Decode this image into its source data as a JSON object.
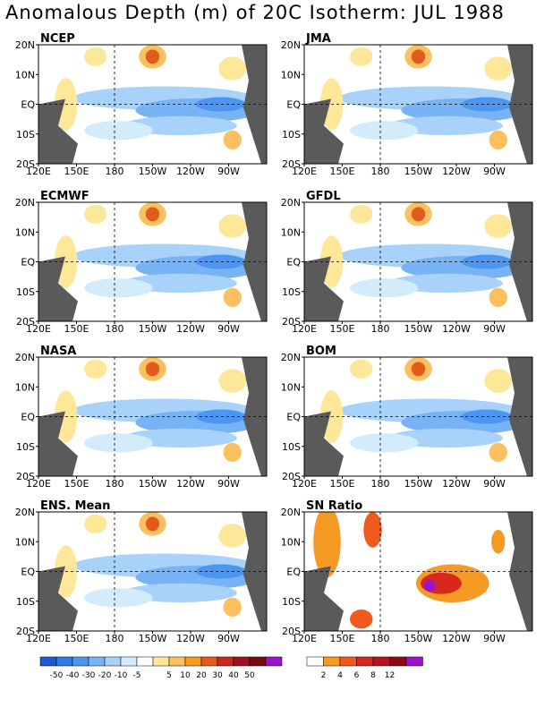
{
  "title": "Anomalous Depth (m) of 20C Isotherm: JUL 1988",
  "lat_labels": [
    "20N",
    "10N",
    "EQ",
    "10S",
    "20S"
  ],
  "lon_labels": [
    "120E",
    "150E",
    "180",
    "150W",
    "120W",
    "90W"
  ],
  "panels": [
    {
      "name": "NCEP",
      "kind": "anomaly"
    },
    {
      "name": "JMA",
      "kind": "anomaly"
    },
    {
      "name": "ECMWF",
      "kind": "anomaly"
    },
    {
      "name": "GFDL",
      "kind": "anomaly"
    },
    {
      "name": "NASA",
      "kind": "anomaly"
    },
    {
      "name": "BOM",
      "kind": "anomaly"
    },
    {
      "name": "ENS. Mean",
      "kind": "anomaly"
    },
    {
      "name": "SN Ratio",
      "kind": "snr"
    }
  ],
  "anomaly_legend": {
    "colors": [
      "#1e5ad2",
      "#2e7ae6",
      "#4a96f0",
      "#78b4f5",
      "#a8d2fa",
      "#d2ecfc",
      "#ffffff",
      "#fde89a",
      "#fbc060",
      "#f59a23",
      "#e25a1c",
      "#c8281e",
      "#9e141e",
      "#780a12",
      "#9a14c8"
    ],
    "labels": [
      "-50",
      "-40",
      "-30",
      "-20",
      "-10",
      "-5",
      "5",
      "10",
      "20",
      "30",
      "40",
      "50"
    ]
  },
  "snr_legend": {
    "colors": [
      "#ffffff",
      "#f59a23",
      "#f05a1c",
      "#d8281e",
      "#b4141e",
      "#8a0a16",
      "#9a14c8"
    ],
    "labels": [
      "2",
      "4",
      "6",
      "8",
      "12"
    ]
  }
}
